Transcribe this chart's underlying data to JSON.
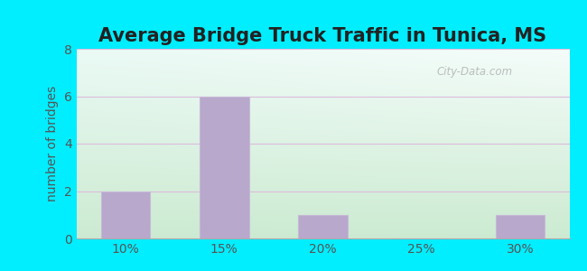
{
  "title": "Average Bridge Truck Traffic in Tunica, MS",
  "categories": [
    "10%",
    "15%",
    "20%",
    "25%",
    "30%"
  ],
  "values": [
    2,
    6,
    1,
    0,
    1
  ],
  "bar_color": "#b8a8cc",
  "bar_edge_color": "#c8b8d8",
  "ylabel": "number of bridges",
  "ylim": [
    0,
    8
  ],
  "yticks": [
    0,
    2,
    4,
    6,
    8
  ],
  "title_fontsize": 15,
  "ylabel_fontsize": 10,
  "tick_fontsize": 10,
  "label_color": "#555555",
  "bg_outer_color": "#00eeff",
  "bg_top_left_color": "#d8f0e0",
  "bg_top_right_color": "#eaf8f8",
  "bg_bottom_color": "#ccead8",
  "watermark_text": "City-Data.com",
  "bar_width": 0.5,
  "grid_color": "#ddbbdd",
  "figwidth": 6.5,
  "figheight": 3.0,
  "dpi": 100
}
